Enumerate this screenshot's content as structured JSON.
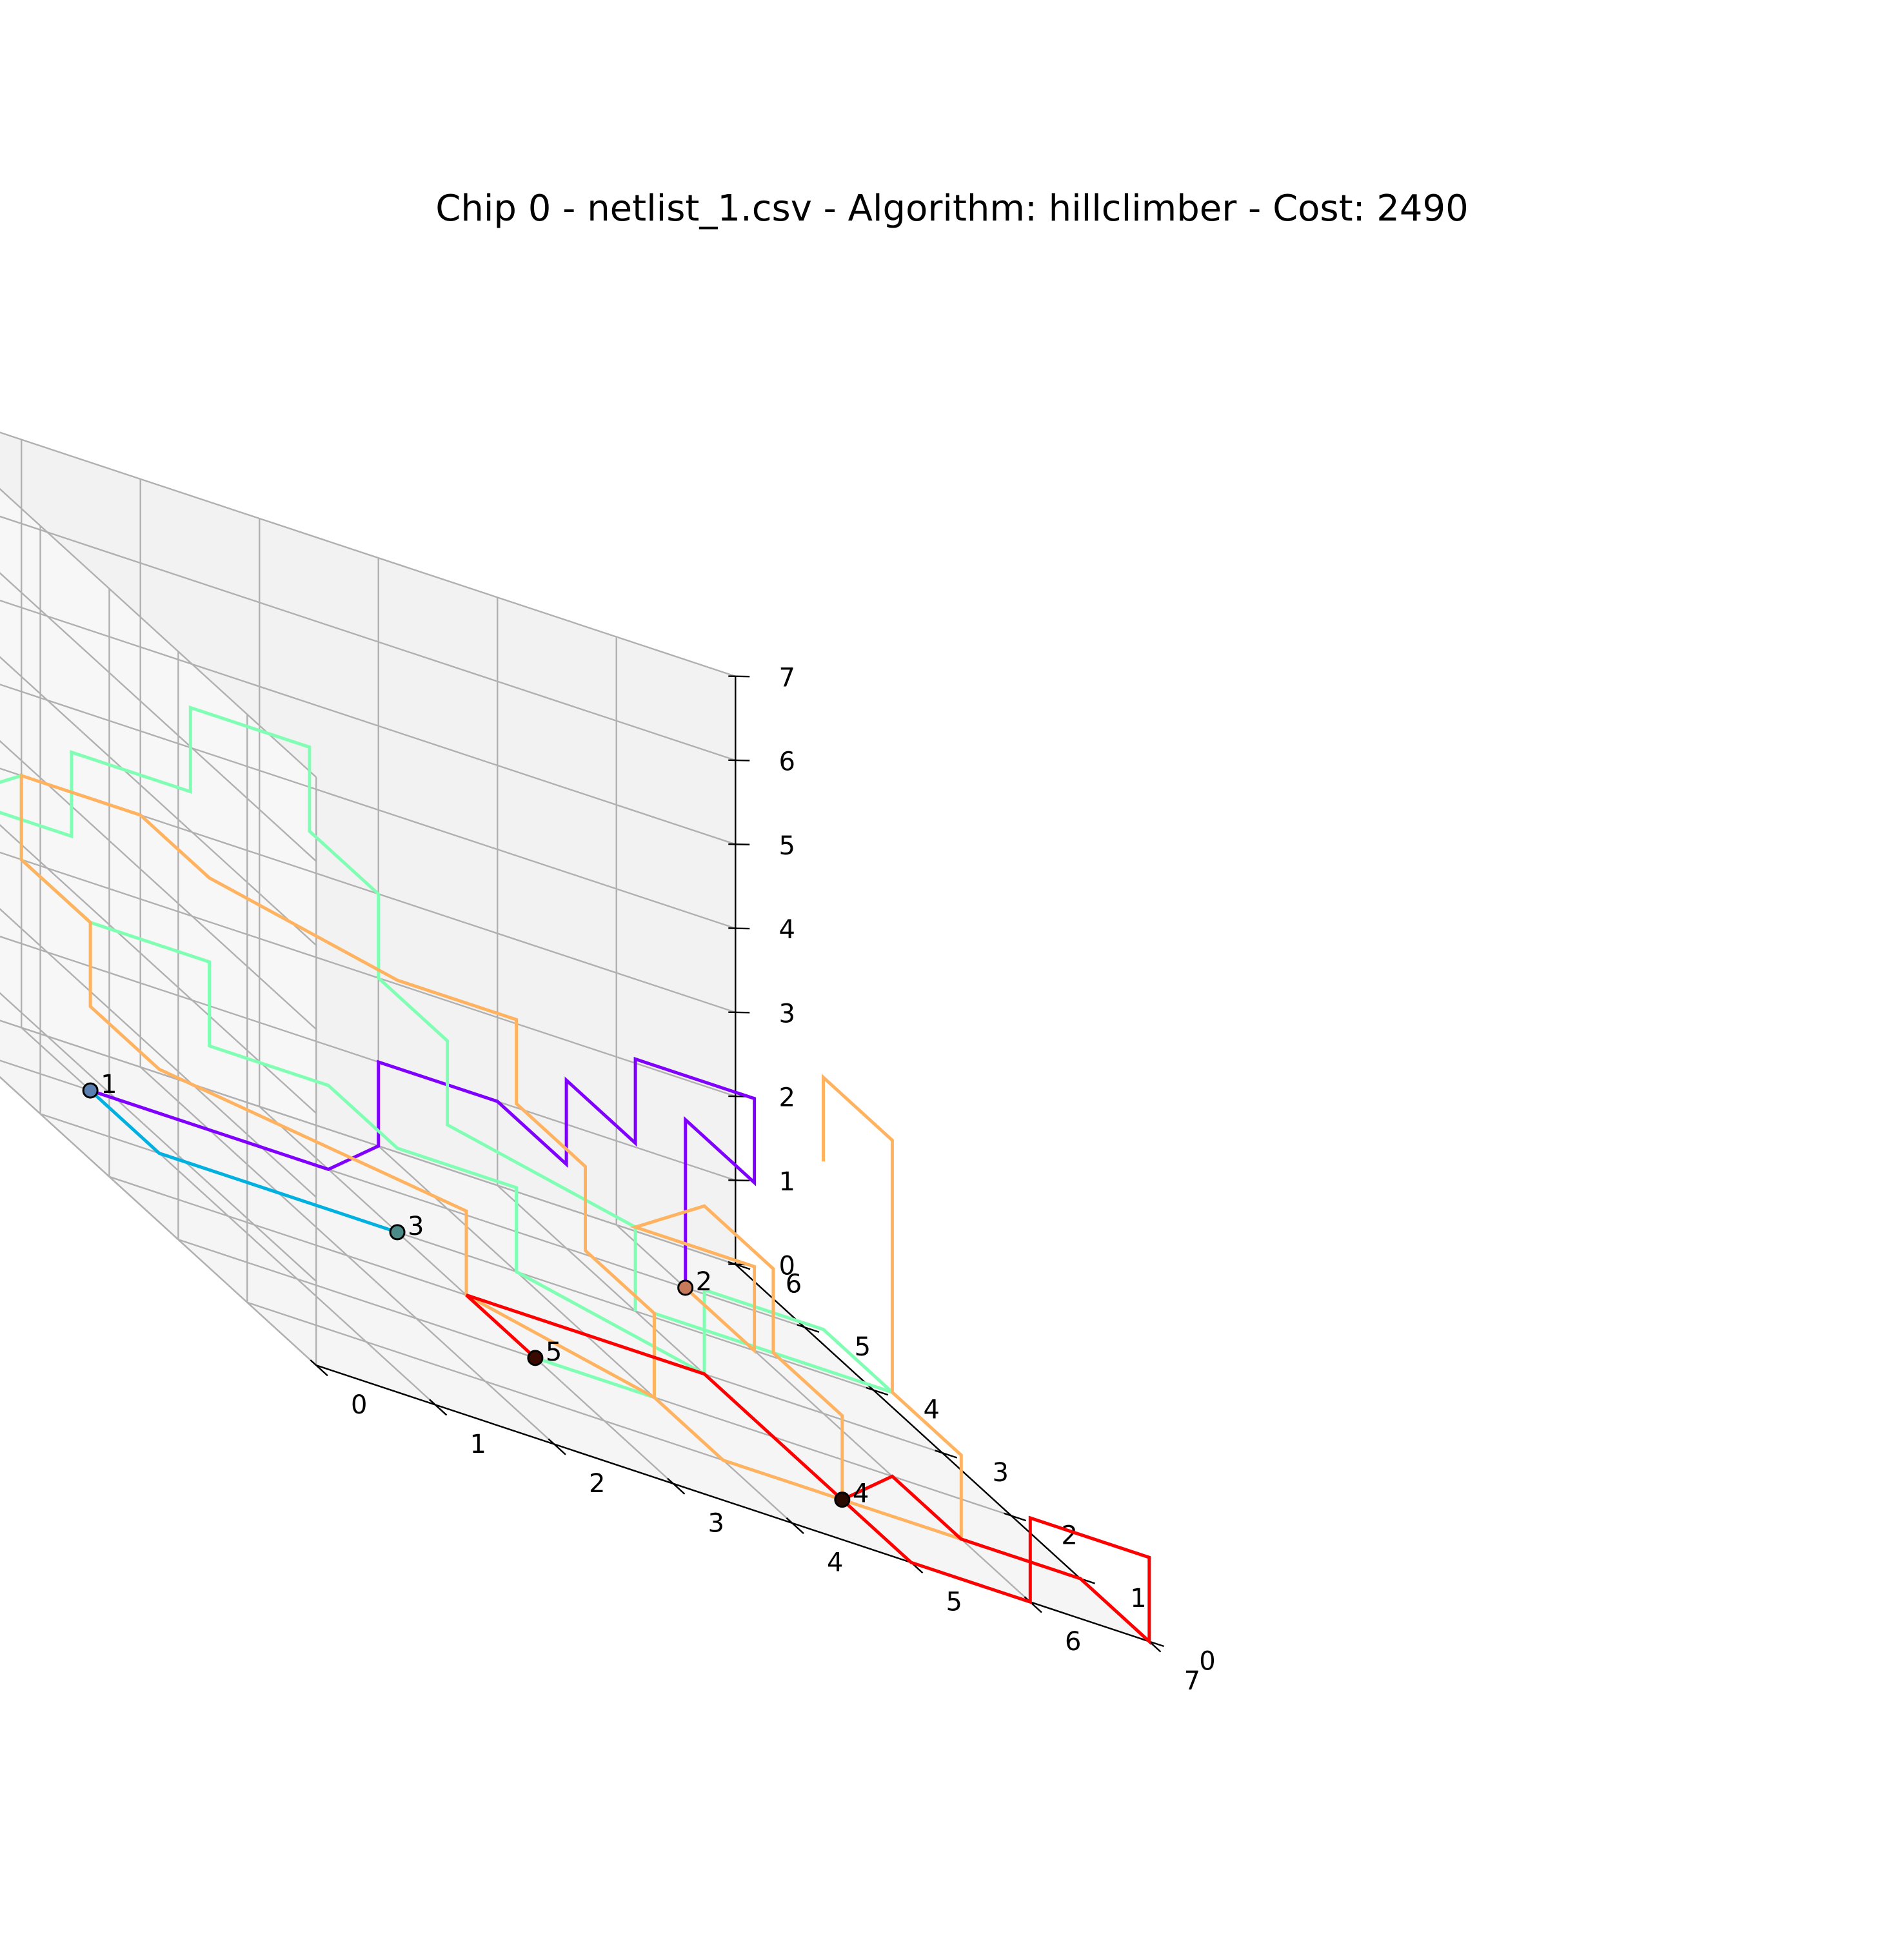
{
  "chart_data": {
    "type": "line3d",
    "title": "Chip 0 - netlist_1.csv - Algorithm: hillclimber - Cost: 2490",
    "xlabel": "",
    "ylabel": "",
    "zlabel": "",
    "xlim": [
      0,
      7
    ],
    "ylim": [
      0,
      6
    ],
    "zlim": [
      0,
      7
    ],
    "x_ticks": [
      "0",
      "1",
      "2",
      "3",
      "4",
      "5",
      "6",
      "7"
    ],
    "y_ticks": [
      "0",
      "1",
      "2",
      "3",
      "4",
      "5",
      "6"
    ],
    "z_ticks": [
      "0",
      "1",
      "2",
      "3",
      "4",
      "5",
      "6",
      "7"
    ],
    "grid": true,
    "panes": {
      "xz": "#f2f2f2",
      "yz": "#f7f7f7",
      "xy": "#f5f5f5"
    },
    "gates": [
      {
        "label": "1",
        "x": 1,
        "y": 5,
        "z": 0,
        "color": "#5a7fb0"
      },
      {
        "label": "2",
        "x": 6,
        "y": 5,
        "z": 0,
        "color": "#c77a5a"
      },
      {
        "label": "3",
        "x": 3,
        "y": 4,
        "z": 0,
        "color": "#4c8a88"
      },
      {
        "label": "4",
        "x": 5,
        "y": 1,
        "z": 0,
        "color": "#2a0a00"
      },
      {
        "label": "5",
        "x": 3,
        "y": 2,
        "z": 0,
        "color": "#3a0a00"
      }
    ],
    "series": [
      {
        "color": "#00b0e0",
        "points": [
          [
            1,
            5,
            0
          ],
          [
            1,
            4,
            0
          ],
          [
            3,
            4,
            0
          ]
        ]
      },
      {
        "color": "#8000ff",
        "points": [
          [
            1,
            5,
            0
          ],
          [
            3,
            5,
            0
          ],
          [
            4,
            6,
            0
          ],
          [
            4,
            6,
            1
          ],
          [
            5,
            6,
            1
          ],
          [
            5,
            5,
            1
          ],
          [
            5,
            5,
            2
          ],
          [
            5,
            4,
            2
          ],
          [
            5,
            4,
            3
          ],
          [
            6,
            4,
            3
          ],
          [
            6,
            4,
            2
          ],
          [
            6,
            5,
            2
          ],
          [
            6,
            5,
            0
          ]
        ]
      },
      {
        "color": "#80ffb4",
        "points": [
          [
            3,
            2,
            0
          ],
          [
            4,
            2,
            0
          ],
          [
            4,
            2,
            1
          ],
          [
            5,
            2,
            1
          ],
          [
            6,
            2,
            1
          ],
          [
            6,
            3,
            1
          ],
          [
            5,
            3,
            1
          ],
          [
            5,
            3,
            0
          ],
          [
            4,
            4,
            0
          ],
          [
            4,
            4,
            1
          ],
          [
            3,
            4,
            1
          ],
          [
            3,
            5,
            1
          ],
          [
            2,
            5,
            1
          ],
          [
            2,
            5,
            2
          ],
          [
            1,
            5,
            2
          ],
          [
            1,
            6,
            2
          ],
          [
            1,
            6,
            3
          ],
          [
            1,
            7,
            2
          ],
          [
            2,
            7,
            2
          ],
          [
            2,
            7,
            3
          ],
          [
            3,
            7,
            3
          ],
          [
            3,
            7,
            4
          ],
          [
            4,
            7,
            4
          ],
          [
            4,
            7,
            3
          ],
          [
            4,
            6,
            3
          ],
          [
            4,
            6,
            2
          ],
          [
            4,
            5,
            2
          ],
          [
            4,
            5,
            1
          ],
          [
            5,
            4,
            1
          ],
          [
            5,
            4,
            0
          ]
        ]
      },
      {
        "color": "#ffb360",
        "points": [
          [
            6,
            5,
            0
          ],
          [
            6,
            4,
            0
          ],
          [
            6,
            4,
            1
          ],
          [
            5,
            4,
            1
          ],
          [
            5,
            3,
            2
          ],
          [
            5,
            2,
            2
          ],
          [
            5,
            2,
            1
          ],
          [
            5,
            1,
            1
          ],
          [
            5,
            1,
            0
          ],
          [
            4,
            1,
            0
          ],
          [
            4,
            2,
            0
          ],
          [
            4,
            2,
            1
          ],
          [
            4,
            3,
            1
          ],
          [
            4,
            3,
            2
          ],
          [
            4,
            4,
            2
          ],
          [
            4,
            4,
            3
          ],
          [
            3,
            4,
            3
          ],
          [
            2,
            5,
            3
          ],
          [
            2,
            6,
            3
          ],
          [
            1,
            6,
            3
          ],
          [
            1,
            6,
            2
          ],
          [
            1,
            5,
            2
          ],
          [
            1,
            5,
            1
          ],
          [
            1,
            4,
            1
          ],
          [
            3,
            3,
            1
          ],
          [
            3,
            3,
            0
          ],
          [
            4,
            2,
            0
          ],
          [
            4,
            1,
            0
          ],
          [
            5,
            1,
            0
          ],
          [
            6,
            1,
            0
          ],
          [
            6,
            1,
            1
          ],
          [
            6,
            2,
            1
          ],
          [
            6,
            2,
            3
          ],
          [
            6,
            2,
            4
          ],
          [
            6,
            3,
            4
          ],
          [
            6,
            3,
            3
          ]
        ]
      },
      {
        "color": "#ff0000",
        "points": [
          [
            3,
            2,
            0
          ],
          [
            3,
            3,
            0
          ],
          [
            5,
            3,
            0
          ],
          [
            5,
            2,
            0
          ],
          [
            5,
            1,
            0
          ],
          [
            5,
            0,
            0
          ],
          [
            6,
            0,
            0
          ],
          [
            6,
            0,
            1
          ],
          [
            7,
            0,
            1
          ],
          [
            7,
            0,
            0
          ],
          [
            7,
            1,
            0
          ],
          [
            6,
            1,
            0
          ],
          [
            6,
            2,
            0
          ],
          [
            5,
            1,
            0
          ]
        ]
      }
    ]
  }
}
